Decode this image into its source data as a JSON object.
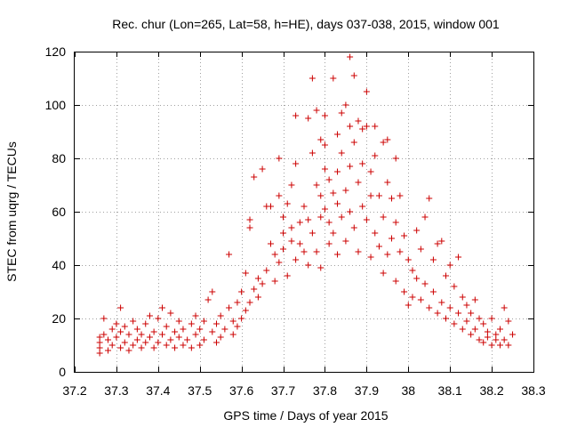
{
  "chart_data": {
    "type": "scatter",
    "title": "Rec. chur (Lon=265, Lat=58, h=HE), days 037-038, 2015, window 001",
    "xlabel": "GPS time / Days of year 2015",
    "ylabel": "STEC from uqrg / TECUs",
    "xlim": [
      37.2,
      38.3
    ],
    "ylim": [
      0,
      120
    ],
    "xticks": [
      "37.2",
      "37.3",
      "37.4",
      "37.5",
      "37.6",
      "37.7",
      "37.8",
      "37.9",
      "38",
      "38.1",
      "38.2",
      "38.3"
    ],
    "yticks": [
      "0",
      "20",
      "40",
      "60",
      "80",
      "100",
      "120"
    ],
    "grid": true,
    "marker": "+",
    "color": "#cc0000",
    "points": [
      [
        37.26,
        7
      ],
      [
        37.26,
        9
      ],
      [
        37.26,
        11
      ],
      [
        37.26,
        13
      ],
      [
        37.27,
        14
      ],
      [
        37.27,
        20
      ],
      [
        37.28,
        8
      ],
      [
        37.28,
        12
      ],
      [
        37.29,
        10
      ],
      [
        37.29,
        16
      ],
      [
        37.3,
        13
      ],
      [
        37.3,
        18
      ],
      [
        37.31,
        9
      ],
      [
        37.31,
        15
      ],
      [
        37.31,
        24
      ],
      [
        37.32,
        11
      ],
      [
        37.32,
        17
      ],
      [
        37.33,
        8
      ],
      [
        37.33,
        14
      ],
      [
        37.34,
        10
      ],
      [
        37.34,
        19
      ],
      [
        37.35,
        12
      ],
      [
        37.35,
        16
      ],
      [
        37.36,
        9
      ],
      [
        37.36,
        14
      ],
      [
        37.37,
        11
      ],
      [
        37.37,
        18
      ],
      [
        37.38,
        13
      ],
      [
        37.38,
        21
      ],
      [
        37.39,
        9
      ],
      [
        37.39,
        15
      ],
      [
        37.4,
        11
      ],
      [
        37.4,
        20
      ],
      [
        37.41,
        14
      ],
      [
        37.41,
        24
      ],
      [
        37.42,
        10
      ],
      [
        37.42,
        17
      ],
      [
        37.43,
        12
      ],
      [
        37.43,
        22
      ],
      [
        37.44,
        9
      ],
      [
        37.44,
        15
      ],
      [
        37.45,
        13
      ],
      [
        37.45,
        19
      ],
      [
        37.46,
        10
      ],
      [
        37.46,
        16
      ],
      [
        37.47,
        12
      ],
      [
        37.48,
        9
      ],
      [
        37.48,
        18
      ],
      [
        37.49,
        14
      ],
      [
        37.49,
        21
      ],
      [
        37.5,
        10
      ],
      [
        37.5,
        16
      ],
      [
        37.51,
        12
      ],
      [
        37.51,
        19
      ],
      [
        37.52,
        27
      ],
      [
        37.53,
        15
      ],
      [
        37.53,
        30
      ],
      [
        37.54,
        11
      ],
      [
        37.54,
        18
      ],
      [
        37.55,
        13
      ],
      [
        37.55,
        21
      ],
      [
        37.56,
        16
      ],
      [
        37.57,
        44
      ],
      [
        37.57,
        24
      ],
      [
        37.58,
        14
      ],
      [
        37.58,
        19
      ],
      [
        37.59,
        17
      ],
      [
        37.59,
        26
      ],
      [
        37.6,
        20
      ],
      [
        37.6,
        30
      ],
      [
        37.61,
        23
      ],
      [
        37.61,
        37
      ],
      [
        37.62,
        57
      ],
      [
        37.62,
        54
      ],
      [
        37.62,
        26
      ],
      [
        37.63,
        31
      ],
      [
        37.63,
        73
      ],
      [
        37.64,
        28
      ],
      [
        37.64,
        35
      ],
      [
        37.65,
        33
      ],
      [
        37.65,
        76
      ],
      [
        37.66,
        38
      ],
      [
        37.66,
        62
      ],
      [
        37.67,
        48
      ],
      [
        37.67,
        62
      ],
      [
        37.68,
        34
      ],
      [
        37.68,
        44
      ],
      [
        37.69,
        80
      ],
      [
        37.69,
        66
      ],
      [
        37.69,
        41
      ],
      [
        37.7,
        52
      ],
      [
        37.7,
        58
      ],
      [
        37.7,
        46
      ],
      [
        37.71,
        63
      ],
      [
        37.71,
        36
      ],
      [
        37.72,
        49
      ],
      [
        37.72,
        54
      ],
      [
        37.72,
        70
      ],
      [
        37.73,
        42
      ],
      [
        37.73,
        96
      ],
      [
        37.73,
        78
      ],
      [
        37.74,
        56
      ],
      [
        37.74,
        48
      ],
      [
        37.75,
        62
      ],
      [
        37.75,
        45
      ],
      [
        37.76,
        57
      ],
      [
        37.76,
        95
      ],
      [
        37.76,
        40
      ],
      [
        37.77,
        82
      ],
      [
        37.77,
        110
      ],
      [
        37.77,
        52
      ],
      [
        37.78,
        70
      ],
      [
        37.78,
        45
      ],
      [
        37.78,
        98
      ],
      [
        37.79,
        87
      ],
      [
        37.79,
        66
      ],
      [
        37.79,
        58
      ],
      [
        37.79,
        39
      ],
      [
        37.8,
        85
      ],
      [
        37.8,
        96
      ],
      [
        37.8,
        76
      ],
      [
        37.8,
        61
      ],
      [
        37.81,
        72
      ],
      [
        37.81,
        56
      ],
      [
        37.81,
        48
      ],
      [
        37.82,
        110
      ],
      [
        37.82,
        67
      ],
      [
        37.82,
        52
      ],
      [
        37.83,
        89
      ],
      [
        37.83,
        75
      ],
      [
        37.83,
        63
      ],
      [
        37.83,
        44
      ],
      [
        37.84,
        82
      ],
      [
        37.84,
        58
      ],
      [
        37.84,
        97
      ],
      [
        37.85,
        68
      ],
      [
        37.85,
        49
      ],
      [
        37.85,
        100
      ],
      [
        37.86,
        118
      ],
      [
        37.86,
        92
      ],
      [
        37.86,
        77
      ],
      [
        37.86,
        60
      ],
      [
        37.87,
        111
      ],
      [
        37.87,
        86
      ],
      [
        37.87,
        54
      ],
      [
        37.88,
        94
      ],
      [
        37.88,
        71
      ],
      [
        37.88,
        45
      ],
      [
        37.89,
        91
      ],
      [
        37.89,
        78
      ],
      [
        37.89,
        62
      ],
      [
        37.9,
        105
      ],
      [
        37.9,
        92
      ],
      [
        37.9,
        57
      ],
      [
        37.91,
        75
      ],
      [
        37.91,
        66
      ],
      [
        37.91,
        43
      ],
      [
        37.92,
        92
      ],
      [
        37.92,
        81
      ],
      [
        37.92,
        52
      ],
      [
        37.93,
        66
      ],
      [
        37.93,
        47
      ],
      [
        37.94,
        86
      ],
      [
        37.94,
        58
      ],
      [
        37.94,
        37
      ],
      [
        37.95,
        87
      ],
      [
        37.95,
        71
      ],
      [
        37.95,
        44
      ],
      [
        37.96,
        65
      ],
      [
        37.96,
        50
      ],
      [
        37.97,
        80
      ],
      [
        37.97,
        56
      ],
      [
        37.97,
        34
      ],
      [
        37.98,
        66
      ],
      [
        37.98,
        45
      ],
      [
        37.99,
        51
      ],
      [
        37.99,
        30
      ],
      [
        38.0,
        42
      ],
      [
        38.0,
        25
      ],
      [
        38.01,
        38
      ],
      [
        38.01,
        28
      ],
      [
        38.02,
        53
      ],
      [
        38.02,
        35
      ],
      [
        38.03,
        46
      ],
      [
        38.03,
        27
      ],
      [
        38.04,
        58
      ],
      [
        38.04,
        33
      ],
      [
        38.05,
        65
      ],
      [
        38.05,
        24
      ],
      [
        38.06,
        42
      ],
      [
        38.06,
        30
      ],
      [
        38.07,
        48
      ],
      [
        38.07,
        22
      ],
      [
        38.08,
        26
      ],
      [
        38.08,
        49
      ],
      [
        38.09,
        36
      ],
      [
        38.09,
        20
      ],
      [
        38.1,
        40
      ],
      [
        38.1,
        24
      ],
      [
        38.11,
        32
      ],
      [
        38.11,
        18
      ],
      [
        38.12,
        43
      ],
      [
        38.12,
        22
      ],
      [
        38.13,
        28
      ],
      [
        38.13,
        16
      ],
      [
        38.14,
        25
      ],
      [
        38.14,
        19
      ],
      [
        38.15,
        22
      ],
      [
        38.15,
        14
      ],
      [
        38.16,
        27
      ],
      [
        38.16,
        16
      ],
      [
        38.17,
        20
      ],
      [
        38.17,
        12
      ],
      [
        38.18,
        18
      ],
      [
        38.18,
        11
      ],
      [
        38.19,
        15
      ],
      [
        38.19,
        13
      ],
      [
        38.2,
        20
      ],
      [
        38.2,
        10
      ],
      [
        38.21,
        14
      ],
      [
        38.21,
        12
      ],
      [
        38.22,
        16
      ],
      [
        38.22,
        10
      ],
      [
        38.23,
        24
      ],
      [
        38.23,
        12
      ],
      [
        38.24,
        19
      ],
      [
        38.24,
        10
      ],
      [
        38.25,
        14
      ]
    ]
  }
}
